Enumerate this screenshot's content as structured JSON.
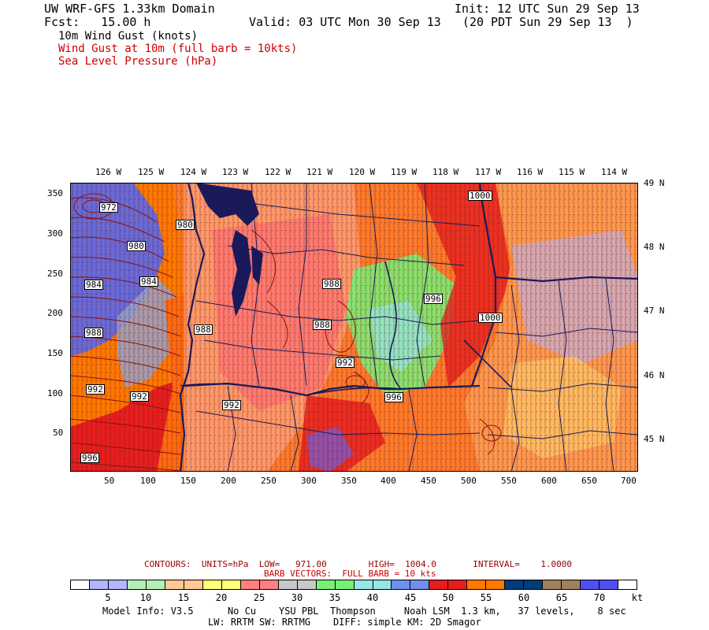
{
  "header": {
    "title": "UW WRF-GFS 1.33km Domain",
    "init": "Init: 12 UTC Sun 29 Sep 13",
    "fcst": "Fcst:   15.00 h",
    "valid": "Valid: 03 UTC Mon 30 Sep 13   (20 PDT Sun 29 Sep 13  )",
    "field1": "10m Wind Gust (knots)",
    "field2": "Wind Gust at 10m (full barb = 10kts)",
    "field3": "Sea Level Pressure (hPa)"
  },
  "axes": {
    "top_lon": [
      "126 W",
      "125 W",
      "124 W",
      "123 W",
      "122 W",
      "121 W",
      "120 W",
      "119 W",
      "118 W",
      "117 W",
      "116 W",
      "115 W",
      "114 W"
    ],
    "right_lat": [
      "49 N",
      "48 N",
      "47 N",
      "46 N",
      "45 N"
    ],
    "left_y": [
      "350",
      "300",
      "250",
      "200",
      "150",
      "100",
      "50"
    ],
    "bottom_x": [
      "50",
      "100",
      "150",
      "200",
      "250",
      "300",
      "350",
      "400",
      "450",
      "500",
      "550",
      "600",
      "650",
      "700"
    ]
  },
  "isobar_labels": [
    {
      "text": "972"
    },
    {
      "text": "980"
    },
    {
      "text": "980"
    },
    {
      "text": "984"
    },
    {
      "text": "984"
    },
    {
      "text": "988"
    },
    {
      "text": "988"
    },
    {
      "text": "988"
    },
    {
      "text": "988"
    },
    {
      "text": "992"
    },
    {
      "text": "992"
    },
    {
      "text": "992"
    },
    {
      "text": "992"
    },
    {
      "text": "996"
    },
    {
      "text": "996"
    },
    {
      "text": "996"
    },
    {
      "text": "1000"
    },
    {
      "text": "1000"
    }
  ],
  "footer": {
    "contours": "CONTOURS:  UNITS=hPa  LOW=   971.00        HIGH=  1004.0       INTERVAL=    1.0000",
    "barbs": "BARB VECTORS:  FULL BARB = 10 kts",
    "model_info": "Model Info: V3.5      No Cu    YSU PBL  Thompson     Noah LSM  1.3 km,   37 levels,    8 sec",
    "physics": "LW: RRTM SW: RRTMG    DIFF: simple KM: 2D Smagor"
  },
  "colorbar": {
    "unit": "kt",
    "labels": [
      "5",
      "10",
      "15",
      "20",
      "25",
      "30",
      "35",
      "40",
      "45",
      "50",
      "55",
      "60",
      "65",
      "70"
    ],
    "colors": [
      "#ffffff",
      "#b4b4ff",
      "#b4b4ff",
      "#b4f0b4",
      "#b4f0b4",
      "#ffc896",
      "#ffc896",
      "#ffff78",
      "#ffff78",
      "#ff8080",
      "#ff8080",
      "#c8c8c8",
      "#c8c8c8",
      "#78f078",
      "#78f078",
      "#96e6e6",
      "#96e6e6",
      "#7090f0",
      "#7090f0",
      "#e61e1e",
      "#e61e1e",
      "#ff7800",
      "#ff7800",
      "#003c78",
      "#003c78",
      "#a08060",
      "#a08060",
      "#5050f0",
      "#5050f0",
      "#ffffff"
    ]
  }
}
